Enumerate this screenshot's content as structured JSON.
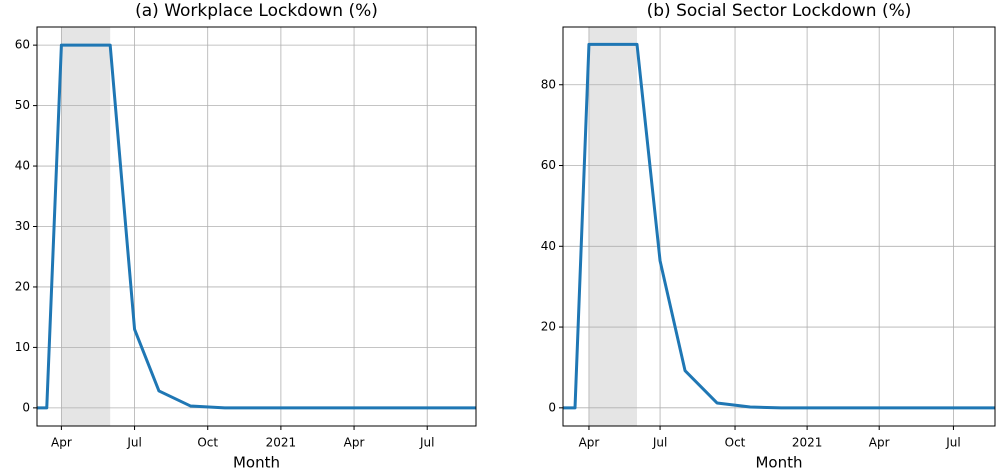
{
  "chart_data": [
    {
      "type": "line",
      "title": "(a) Workplace Lockdown (%)",
      "xlabel": "Month",
      "x": [
        3.0,
        3.4,
        4,
        6,
        7,
        8,
        9.3,
        10.7,
        12,
        15,
        18,
        21
      ],
      "values": [
        0,
        0,
        60,
        60,
        13,
        2.8,
        0.3,
        0,
        0,
        0,
        0,
        0
      ],
      "color": "#1f77b4",
      "shade": [
        4,
        6
      ],
      "shade_color": "#e5e5e5",
      "xlim": [
        3,
        21
      ],
      "ylim": [
        -3,
        63
      ],
      "xticks": [
        {
          "value": 4,
          "label": "Apr"
        },
        {
          "value": 7,
          "label": "Jul"
        },
        {
          "value": 10,
          "label": "Oct"
        },
        {
          "value": 13,
          "label": "2021"
        },
        {
          "value": 16,
          "label": "Apr"
        },
        {
          "value": 19,
          "label": "Jul"
        }
      ],
      "yticks": [
        0,
        10,
        20,
        30,
        40,
        50,
        60
      ],
      "grid": true
    },
    {
      "type": "line",
      "title": "(b) Social Sector Lockdown (%)",
      "xlabel": "Month",
      "x": [
        2.92,
        3.42,
        4,
        6,
        6.96,
        8,
        9.33,
        10.71,
        12,
        15,
        18,
        20.9
      ],
      "values": [
        0,
        0,
        90,
        90,
        36.4,
        9.2,
        1.2,
        0.2,
        0,
        0,
        0,
        0
      ],
      "color": "#1f77b4",
      "shade": [
        4,
        6
      ],
      "shade_color": "#e5e5e5",
      "xlim": [
        2.92,
        20.9
      ],
      "ylim": [
        -4.5,
        94.3
      ],
      "xticks": [
        {
          "value": 4,
          "label": "Apr"
        },
        {
          "value": 6.96,
          "label": "Jul"
        },
        {
          "value": 10.08,
          "label": "Oct"
        },
        {
          "value": 13.08,
          "label": "2021"
        },
        {
          "value": 16.08,
          "label": "Apr"
        },
        {
          "value": 19.17,
          "label": "Jul"
        }
      ],
      "yticks": [
        0,
        20,
        40,
        60,
        80
      ],
      "grid": true
    }
  ]
}
